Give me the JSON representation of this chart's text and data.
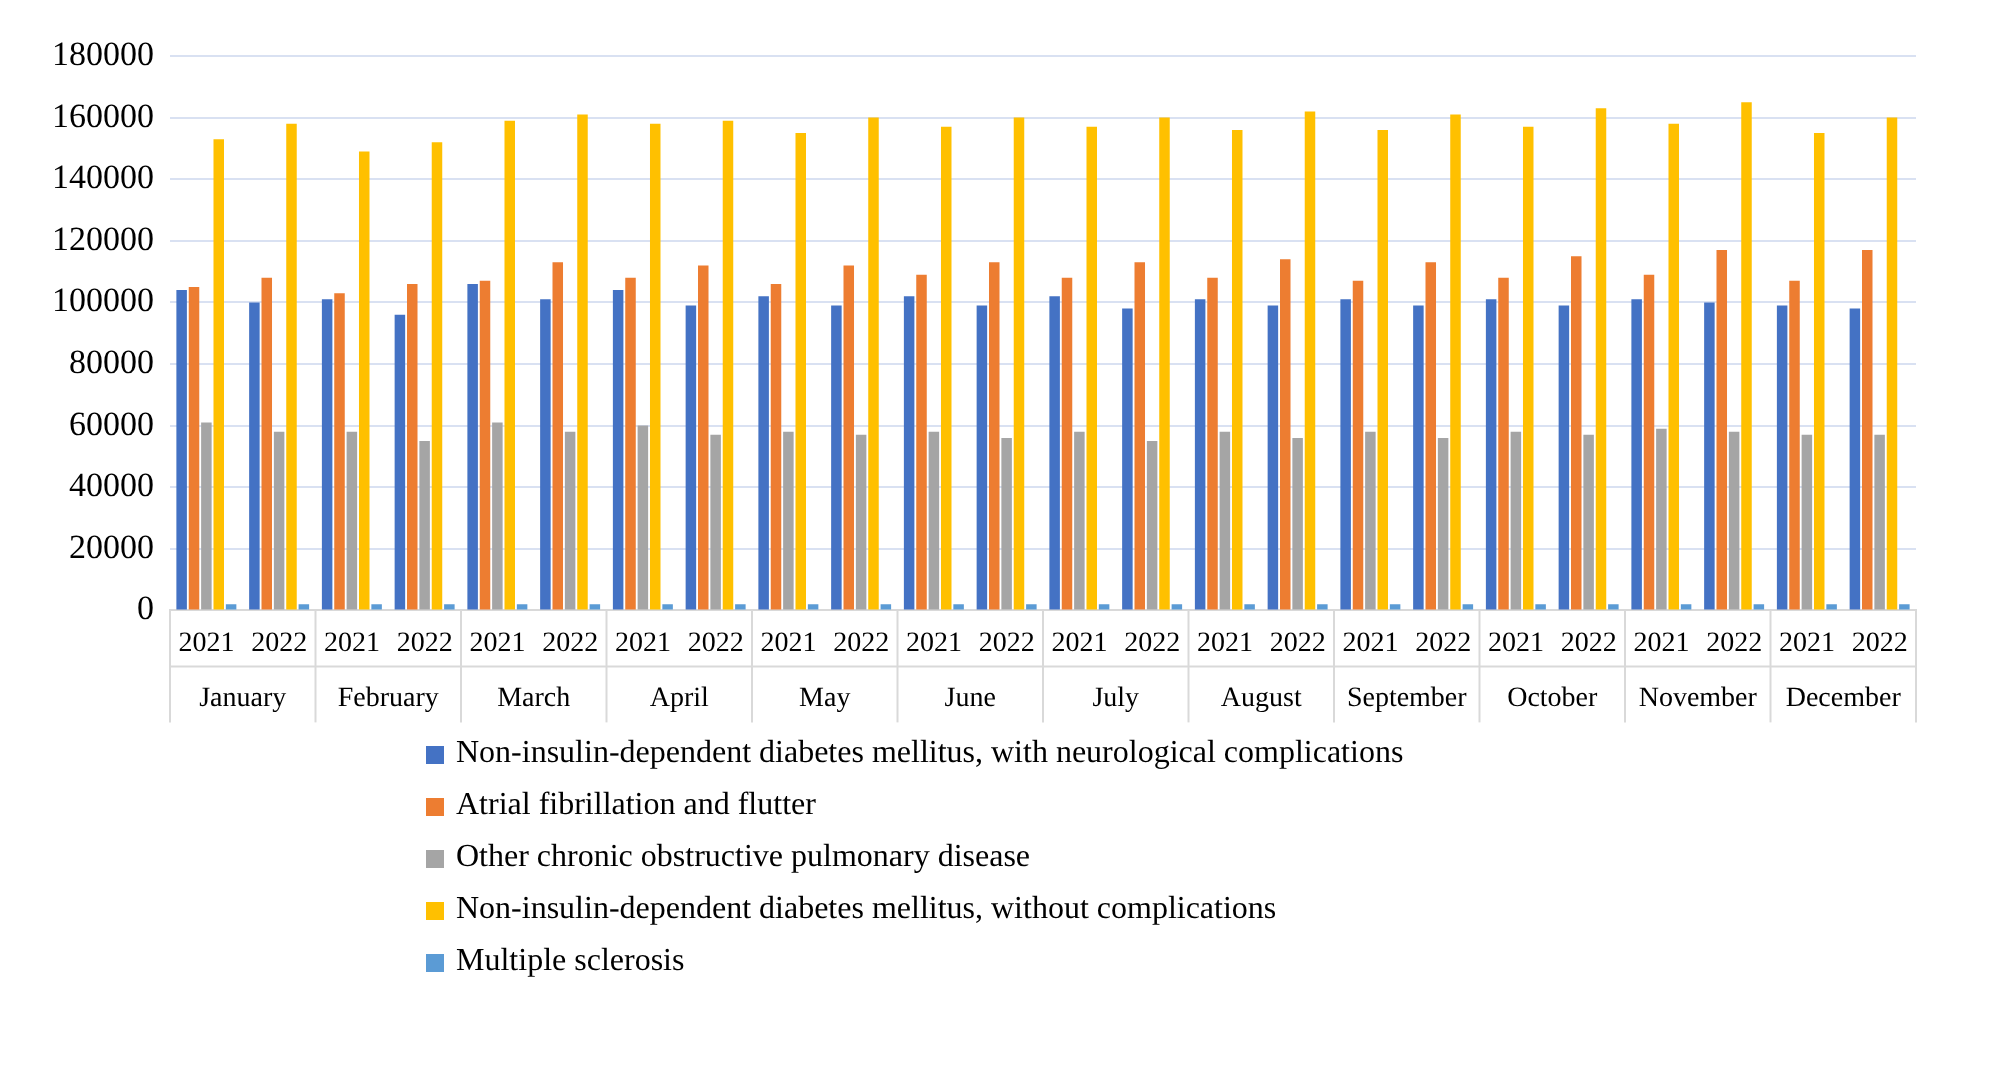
{
  "chart_data": {
    "type": "bar",
    "categories": [
      "2021",
      "2022",
      "2021",
      "2022",
      "2021",
      "2022",
      "2021",
      "2022",
      "2021",
      "2022",
      "2021",
      "2022",
      "2021",
      "2022",
      "2021",
      "2022",
      "2021",
      "2022",
      "2021",
      "2022",
      "2021",
      "2022",
      "2021",
      "2022"
    ],
    "annotations": [
      "January",
      "February",
      "March",
      "April",
      "May",
      "June",
      "July",
      "August",
      "September",
      "October",
      "November",
      "December"
    ],
    "series": [
      {
        "name": "Non-insulin-dependent diabetes mellitus, with neurological complications",
        "color": "#4472c4",
        "values": [
          104000,
          100000,
          101000,
          96000,
          106000,
          101000,
          104000,
          99000,
          102000,
          99000,
          102000,
          99000,
          102000,
          98000,
          101000,
          99000,
          101000,
          99000,
          101000,
          99000,
          101000,
          100000,
          99000,
          98000
        ]
      },
      {
        "name": "Atrial fibrillation and flutter",
        "color": "#ed7d31",
        "values": [
          105000,
          108000,
          103000,
          106000,
          107000,
          113000,
          108000,
          112000,
          106000,
          112000,
          109000,
          113000,
          108000,
          113000,
          108000,
          114000,
          107000,
          113000,
          108000,
          115000,
          109000,
          117000,
          107000,
          117000
        ]
      },
      {
        "name": "Other chronic obstructive pulmonary disease",
        "color": "#a5a5a5",
        "values": [
          61000,
          58000,
          58000,
          55000,
          61000,
          58000,
          60000,
          57000,
          58000,
          57000,
          58000,
          56000,
          58000,
          55000,
          58000,
          56000,
          58000,
          56000,
          58000,
          57000,
          59000,
          58000,
          57000,
          57000
        ]
      },
      {
        "name": "Non-insulin-dependent diabetes mellitus, without complications",
        "color": "#ffc000",
        "values": [
          153000,
          158000,
          149000,
          152000,
          159000,
          161000,
          158000,
          159000,
          155000,
          160000,
          157000,
          160000,
          157000,
          160000,
          156000,
          162000,
          156000,
          161000,
          157000,
          163000,
          158000,
          165000,
          155000,
          160000
        ]
      },
      {
        "name": "Multiple sclerosis",
        "color": "#5b9bd5",
        "values": [
          2000,
          2000,
          2000,
          2000,
          2000,
          2000,
          2000,
          2000,
          2000,
          2000,
          2000,
          2000,
          2000,
          2000,
          2000,
          2000,
          2000,
          2000,
          2000,
          2000,
          2000,
          2000,
          2000,
          2000
        ]
      }
    ],
    "ylim": [
      0,
      180000
    ],
    "yticks": [
      0,
      20000,
      40000,
      60000,
      80000,
      100000,
      120000,
      140000,
      160000,
      180000
    ],
    "grid": "y",
    "legend": "bottom"
  }
}
